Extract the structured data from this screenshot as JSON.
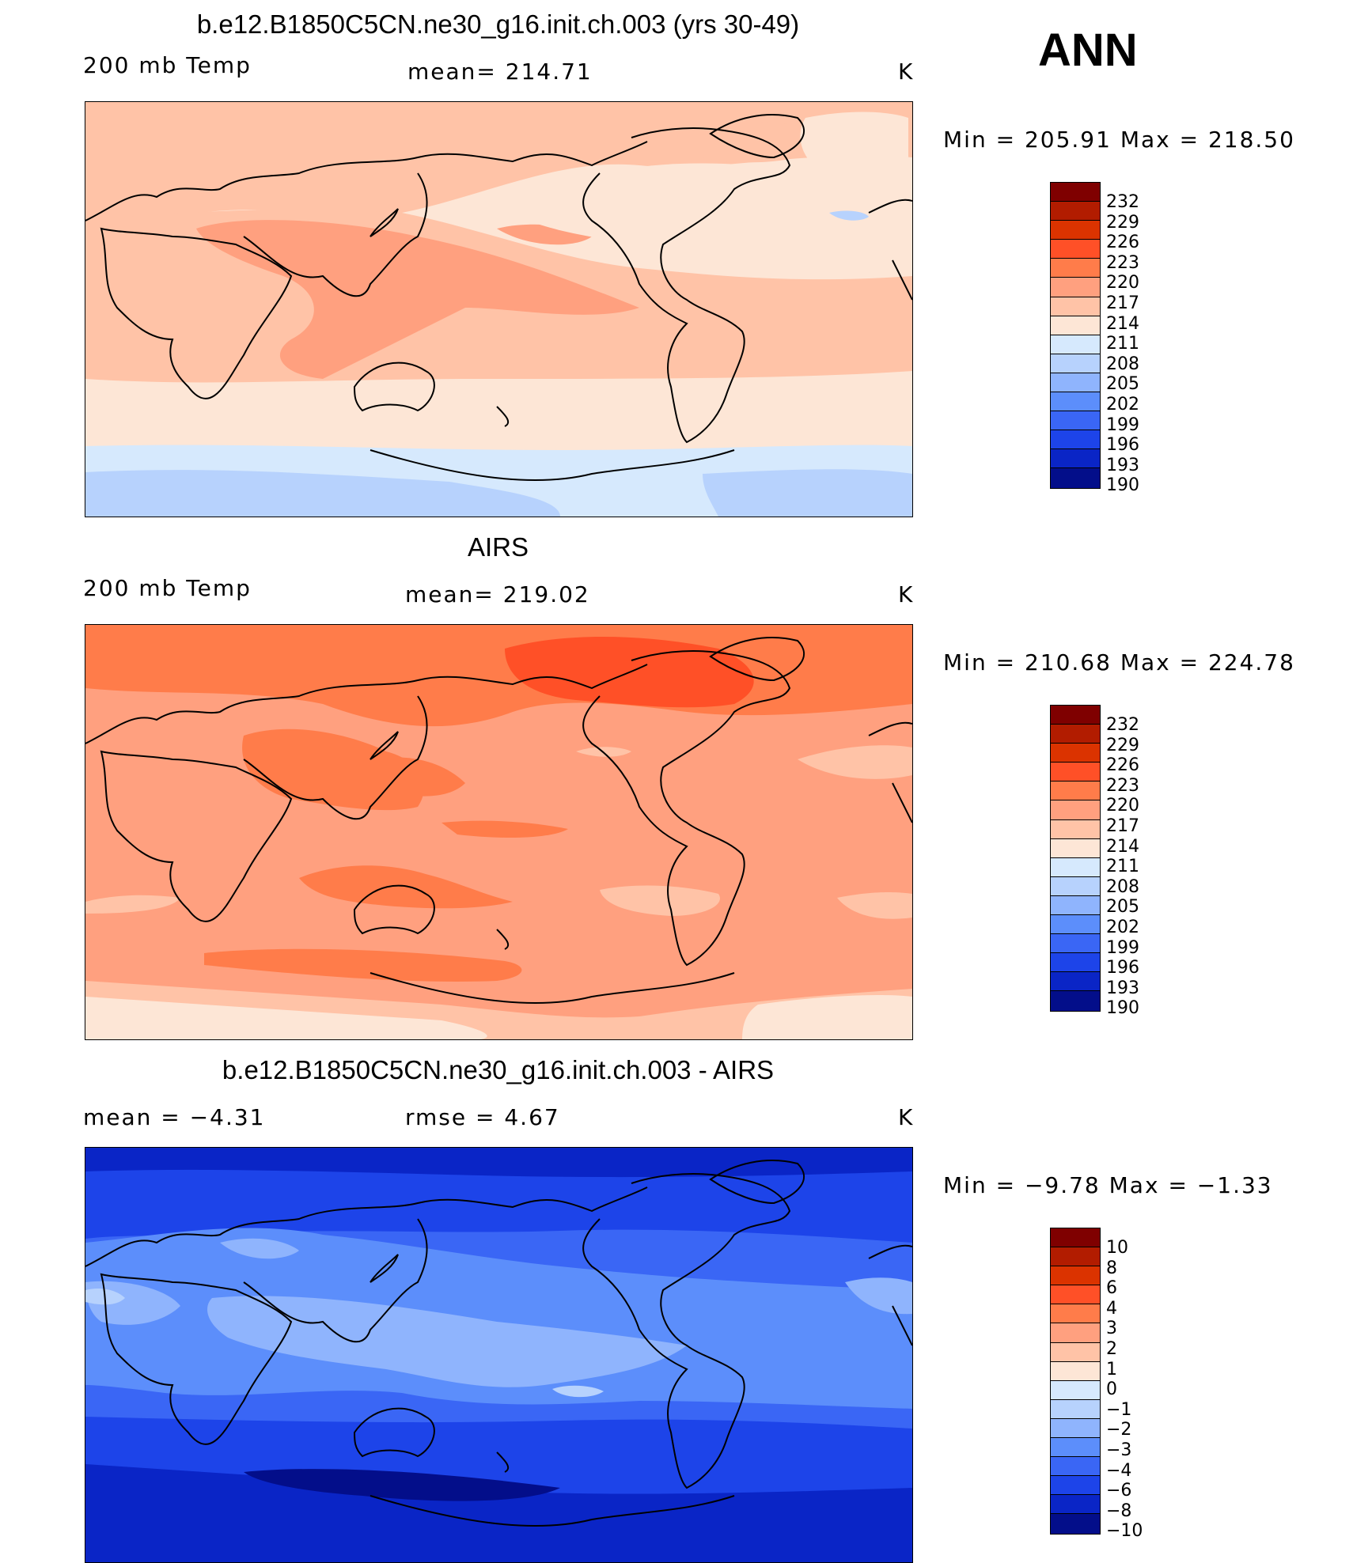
{
  "season": "ANN",
  "colors": {
    "temp_scale": [
      "#7f0000",
      "#b21c00",
      "#db3300",
      "#ff5027",
      "#ff7c4a",
      "#ffa07f",
      "#ffc3a7",
      "#fde6d6",
      "#d6e9fd",
      "#b7d2fd",
      "#8fb4fd",
      "#5c8efb",
      "#3a66f5",
      "#1d44e9",
      "#0a25c6",
      "#030e8a"
    ],
    "diff_scale": [
      "#7f0000",
      "#b21c00",
      "#db3300",
      "#ff5027",
      "#ff7c4a",
      "#ffa07f",
      "#ffc3a7",
      "#fde6d6",
      "#d6e9fd",
      "#b7d2fd",
      "#8fb4fd",
      "#5c8efb",
      "#3a66f5",
      "#1d44e9",
      "#0a25c6",
      "#030e8a"
    ]
  },
  "panels": [
    {
      "title": "b.e12.B1850C5CN.ne30_g16.init.ch.003 (yrs 30-49)",
      "left_label": "200 mb Temp",
      "center_label": "mean=  214.71",
      "units": "K",
      "minmax": "Min  =  205.91  Max  =  218.50",
      "colorbar_labels": [
        "232",
        "229",
        "226",
        "223",
        "220",
        "217",
        "214",
        "211",
        "208",
        "205",
        "202",
        "199",
        "196",
        "193",
        "190"
      ]
    },
    {
      "title": "AIRS",
      "left_label": "200 mb Temp",
      "center_label": "mean=  219.02",
      "units": "K",
      "minmax": "Min  =  210.68  Max  =  224.78",
      "colorbar_labels": [
        "232",
        "229",
        "226",
        "223",
        "220",
        "217",
        "214",
        "211",
        "208",
        "205",
        "202",
        "199",
        "196",
        "193",
        "190"
      ]
    },
    {
      "title": "b.e12.B1850C5CN.ne30_g16.init.ch.003 - AIRS",
      "left_label": "mean  =    −4.31",
      "center_label": "rmse  =     4.67",
      "units": "K",
      "minmax": "Min  =    −9.78  Max  =    −1.33",
      "colorbar_labels": [
        "10",
        "8",
        "6",
        "4",
        "3",
        "2",
        "1",
        "0",
        "−1",
        "−2",
        "−3",
        "−4",
        "−6",
        "−8",
        "−10"
      ]
    }
  ]
}
